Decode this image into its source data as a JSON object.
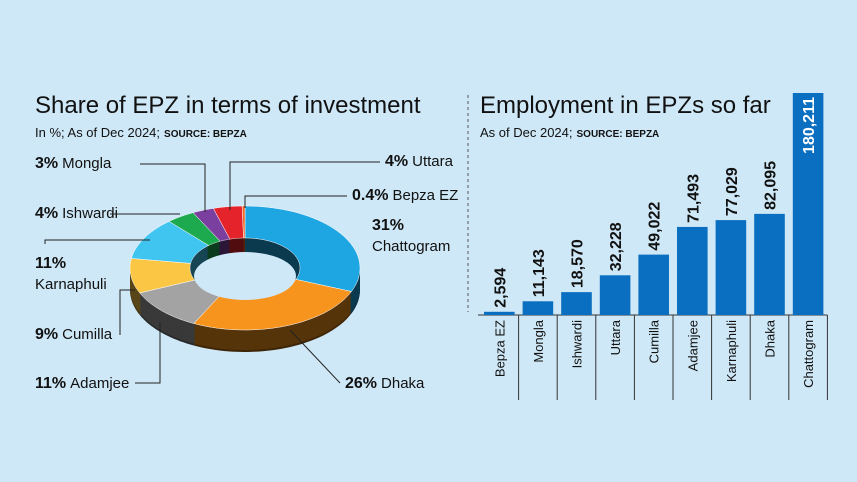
{
  "chart_data": [
    {
      "type": "pie",
      "title": "Share of EPZ in terms of investment",
      "subtitle": "In %; As of Dec 2024;",
      "source": "SOURCE: BEPZA",
      "categories": [
        "Chattogram",
        "Dhaka",
        "Adamjee",
        "Cumilla",
        "Karnaphuli",
        "Ishwardi",
        "Mongla",
        "Uttara",
        "Bepza EZ"
      ],
      "values": [
        31,
        26,
        11,
        9,
        11,
        4,
        3,
        4,
        0.4
      ],
      "value_labels": [
        "31%",
        "26%",
        "11%",
        "9%",
        "11%",
        "4%",
        "3%",
        "4%",
        "0.4%"
      ],
      "colors": [
        "#1ea6e3",
        "#f7941d",
        "#a3a3a3",
        "#fcc645",
        "#40c4f0",
        "#1daa4f",
        "#7b3fa0",
        "#e5232b",
        "#f26522"
      ]
    },
    {
      "type": "bar",
      "title": "Employment in EPZs so far",
      "subtitle": "As of Dec 2024;",
      "source": "SOURCE: BEPZA",
      "categories": [
        "Bepza EZ",
        "Mongla",
        "Ishwardi",
        "Uttara",
        "Cumilla",
        "Adamjee",
        "Karnaphuli",
        "Dhaka",
        "Chattogram"
      ],
      "values": [
        2594,
        11143,
        18570,
        32228,
        49022,
        71493,
        77029,
        82095,
        180211
      ],
      "value_labels": [
        "2,594",
        "11,143",
        "18,570",
        "32,228",
        "49,022",
        "71,493",
        "77,029",
        "82,095",
        "180,211"
      ],
      "color": "#0b6fc1"
    }
  ]
}
